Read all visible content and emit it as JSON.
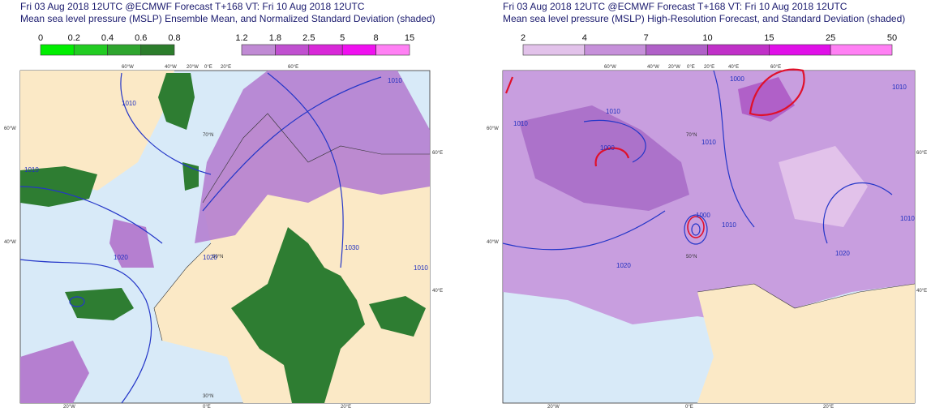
{
  "panels": [
    {
      "title": "Fri 03 Aug 2018 12UTC @ECMWF Forecast T+168 VT: Fri 10 Aug 2018 12UTC",
      "subtitle": "Mean sea level pressure (MSLP) Ensemble Mean, and Normalized Standard Deviation (shaded)",
      "colorbars": [
        {
          "labels": [
            "0",
            "0.2",
            "0.4",
            "0.6",
            "0.8"
          ],
          "colors": [
            "#00ee00",
            "#22cc22",
            "#2ea52e",
            "#2c7d2c"
          ]
        },
        {
          "labels": [
            "1.2",
            "1.8",
            "2.5",
            "5",
            "8",
            "15"
          ],
          "colors": [
            "#c08ad4",
            "#c050d0",
            "#d828d8",
            "#f010f0",
            "#ff80f4"
          ]
        }
      ],
      "grid_labels": [
        "60°W",
        "40°W",
        "20°W",
        "0°E",
        "20°E",
        "60°E",
        "60°W",
        "40°W",
        "60°E",
        "40°E",
        "70°N",
        "50°N",
        "30°N",
        "20°W",
        "0°E",
        "20°E"
      ],
      "isobar_labels": [
        "1010",
        "1010",
        "1010",
        "1020",
        "1020",
        "1030",
        "1010"
      ]
    },
    {
      "title": "Fri 03 Aug 2018 12UTC @ECMWF Forecast T+168 VT: Fri 10 Aug 2018 12UTC",
      "subtitle": "Mean sea level pressure (MSLP) High-Resolution Forecast, and Standard Deviation (shaded)",
      "colorbars": [
        {
          "labels": [
            "2",
            "4",
            "7",
            "10",
            "15",
            "25",
            "50"
          ],
          "colors": [
            "#e2c2ea",
            "#c690da",
            "#b060c8",
            "#c030c8",
            "#e010e8",
            "#ff80f4"
          ]
        }
      ],
      "grid_labels": [
        "60°W",
        "40°W",
        "20°W",
        "0°E",
        "20°E",
        "40°E",
        "60°E",
        "60°W",
        "40°W",
        "60°E",
        "40°E",
        "70°N",
        "50°N",
        "20°W",
        "0°E",
        "20°E"
      ],
      "isobar_labels": [
        "1010",
        "1010",
        "1010",
        "1000",
        "1000",
        "1010",
        "1000",
        "1010",
        "1020",
        "1010",
        "1020"
      ]
    }
  ]
}
